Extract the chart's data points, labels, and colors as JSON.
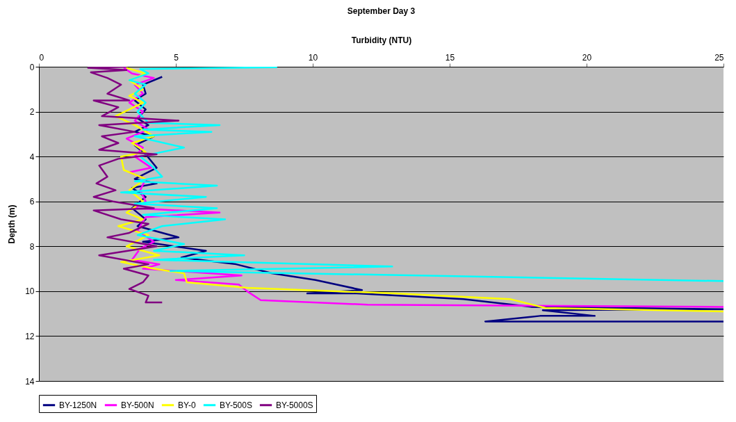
{
  "chart_data": {
    "type": "line",
    "title": "September Day 3",
    "xlabel": "Turbidity (NTU)",
    "ylabel": "Depth (m)",
    "xlim": [
      0,
      25
    ],
    "xticks": [
      0,
      5,
      10,
      15,
      20,
      25
    ],
    "ylim": [
      14,
      0
    ],
    "yticks": [
      0,
      2,
      4,
      6,
      8,
      10,
      12,
      14
    ],
    "grid": "y",
    "legend": "bottom",
    "series": [
      {
        "name": "BY-1250N",
        "color": "#000080",
        "x": [
          4.5,
          3.8,
          3.9,
          3.5,
          3.9,
          3.6,
          4.0,
          3.5,
          4.2,
          3.5,
          3.9,
          4.3,
          3.5,
          4.3,
          3.4,
          3.9,
          3.4,
          3.9,
          3.6,
          5.1,
          3.8,
          6.1,
          5.2,
          7.2,
          8.5,
          10.1,
          11.8,
          9.8,
          11.6,
          15.5,
          18,
          25,
          18.4,
          20.3,
          18.3,
          16.3,
          25
        ],
        "values": [
          0.45,
          0.8,
          1.2,
          1.5,
          1.9,
          2.3,
          2.6,
          2.9,
          3.1,
          3.5,
          3.9,
          4.5,
          5.0,
          5.2,
          5.4,
          5.8,
          6.3,
          6.8,
          7.1,
          7.6,
          7.8,
          8.2,
          8.5,
          8.8,
          9.2,
          9.5,
          9.95,
          10.1,
          10.1,
          10.35,
          10.7,
          10.8,
          10.85,
          11.1,
          11.1,
          11.35,
          11.35
        ]
      },
      {
        "name": "BY-500N",
        "color": "#ff00ff",
        "x": [
          3.1,
          3.4,
          4.2,
          3.5,
          3.8,
          3.3,
          3.8,
          3.5,
          4.0,
          3.2,
          3.8,
          3.5,
          4.1,
          3.3,
          3.9,
          3.7,
          3.9,
          3.5,
          6.6,
          3.9,
          3.6,
          4.2,
          3.7,
          3.4,
          4.4,
          3.8,
          7.4,
          5.0,
          7.3,
          7.6,
          8.1,
          12,
          25
        ],
        "values": [
          0.05,
          0.3,
          0.5,
          0.8,
          1.2,
          1.6,
          2.0,
          2.4,
          2.8,
          3.2,
          3.6,
          4.0,
          4.5,
          4.7,
          5.0,
          5.5,
          6.0,
          6.3,
          6.5,
          6.7,
          7.3,
          7.8,
          8.1,
          8.6,
          8.8,
          9.0,
          9.3,
          9.5,
          9.7,
          10.0,
          10.4,
          10.6,
          10.7
        ]
      },
      {
        "name": "BY-0",
        "color": "#ffff00",
        "x": [
          3.2,
          3.9,
          3.3,
          3.8,
          3.3,
          3.8,
          2.8,
          3.5,
          4.2,
          3.4,
          3.9,
          3.0,
          3.1,
          3.9,
          3.3,
          3.8,
          3.2,
          3.8,
          2.9,
          4.0,
          3.2,
          4.4,
          3.0,
          4.2,
          5.3,
          5.4,
          7.6,
          13,
          17.2,
          18.5,
          25
        ],
        "values": [
          0.05,
          0.3,
          0.6,
          1.0,
          1.3,
          1.6,
          2.2,
          2.6,
          3.1,
          3.4,
          3.8,
          4.0,
          4.6,
          5.0,
          5.5,
          6.0,
          6.5,
          6.8,
          7.1,
          7.5,
          8.0,
          8.4,
          8.7,
          9.0,
          9.2,
          9.6,
          9.85,
          10.1,
          10.35,
          10.75,
          10.9
        ]
      },
      {
        "name": "BY-500S",
        "color": "#00ffff",
        "x": [
          8.7,
          3.7,
          4.0,
          3.3,
          3.9,
          3.5,
          3.9,
          3.6,
          4.0,
          6.6,
          3.8,
          6.3,
          3.5,
          5.3,
          3.7,
          4.2,
          4.5,
          3.5,
          6.5,
          3.0,
          6.1,
          3.5,
          6.5,
          3.8,
          6.8,
          4.5,
          3.6,
          5.3,
          4.2,
          7.5,
          4.2,
          12.9,
          4.8,
          25
        ],
        "values": [
          0.02,
          0.1,
          0.3,
          0.6,
          0.8,
          1.2,
          1.6,
          2.0,
          2.5,
          2.6,
          2.8,
          2.9,
          3.1,
          3.6,
          4.0,
          4.5,
          4.9,
          5.1,
          5.3,
          5.6,
          5.8,
          6.1,
          6.3,
          6.6,
          6.8,
          7.1,
          7.5,
          7.9,
          8.2,
          8.4,
          8.6,
          8.9,
          9.1,
          9.55
        ]
      },
      {
        "name": "BY-5000S",
        "color": "#800080",
        "x": [
          3.2,
          1.8,
          3.2,
          1.9,
          2.5,
          3.0,
          2.5,
          3.3,
          2.0,
          2.9,
          2.3,
          5.1,
          2.2,
          3.5,
          2.3,
          2.9,
          2.2,
          4.3,
          2.9,
          2.2,
          2.5,
          2.1,
          2.8,
          2.0,
          2.7,
          4.2,
          2.0,
          3.0,
          4.0,
          3.3,
          2.5,
          4.3,
          2.2,
          4.0,
          3.1,
          4.0,
          3.8,
          3.3,
          4.0,
          3.9,
          4.5
        ],
        "values": [
          0.0,
          0.05,
          0.15,
          0.25,
          0.5,
          0.8,
          1.2,
          1.5,
          1.5,
          1.8,
          2.2,
          2.4,
          2.6,
          2.9,
          3.1,
          3.4,
          3.7,
          3.9,
          4.1,
          4.4,
          4.9,
          5.2,
          5.5,
          5.8,
          6.0,
          6.3,
          6.4,
          6.8,
          7.0,
          7.4,
          7.6,
          8.0,
          8.4,
          8.8,
          9.0,
          9.3,
          9.6,
          9.9,
          10.2,
          10.5,
          10.5
        ]
      }
    ]
  }
}
